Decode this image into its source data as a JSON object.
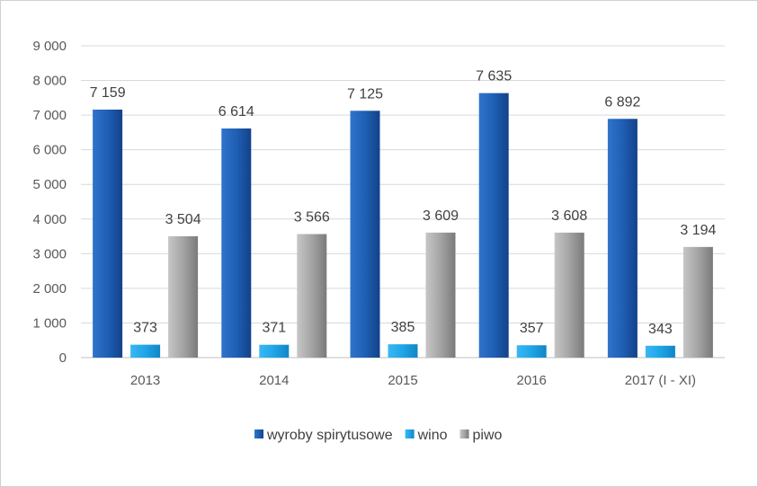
{
  "chart_data": {
    "type": "bar",
    "categories": [
      "2013",
      "2014",
      "2015",
      "2016",
      "2017 (I - XI)"
    ],
    "series": [
      {
        "name": "wyroby spirytusowe",
        "values": [
          7159,
          6614,
          7125,
          7635,
          6892
        ],
        "labels": [
          "7 159",
          "6 614",
          "7 125",
          "7 635",
          "6 892"
        ],
        "color": "#1f5fb4"
      },
      {
        "name": "wino",
        "values": [
          373,
          371,
          385,
          357,
          343
        ],
        "labels": [
          "373",
          "371",
          "385",
          "357",
          "343"
        ],
        "color": "#1ea5e8"
      },
      {
        "name": "piwo",
        "values": [
          3504,
          3566,
          3609,
          3608,
          3194
        ],
        "labels": [
          "3 504",
          "3 566",
          "3 609",
          "3 608",
          "3 194"
        ],
        "color": "#9c9c9c"
      }
    ],
    "ylim": [
      0,
      9000
    ],
    "yticks": [
      0,
      1000,
      2000,
      3000,
      4000,
      5000,
      6000,
      7000,
      8000,
      9000
    ],
    "ytick_labels": [
      "0",
      "1 000",
      "2 000",
      "3 000",
      "4 000",
      "5 000",
      "6 000",
      "7 000",
      "8 000",
      "9 000"
    ],
    "grid": true,
    "legend": "bottom"
  }
}
